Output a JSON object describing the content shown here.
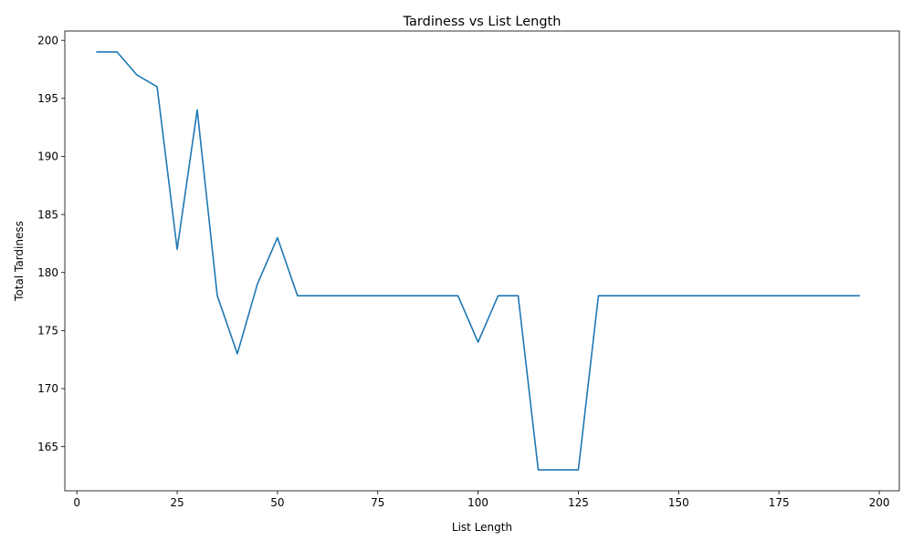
{
  "chart_data": {
    "type": "line",
    "title": "Tardiness vs List Length",
    "xlabel": "List Length",
    "ylabel": "Total Tardiness",
    "xlim": [
      -3,
      205
    ],
    "ylim": [
      161.2,
      200.8
    ],
    "xticks": [
      0,
      25,
      50,
      75,
      100,
      125,
      150,
      175,
      200
    ],
    "yticks": [
      165,
      170,
      175,
      180,
      185,
      190,
      195,
      200
    ],
    "grid": false,
    "legend": "none",
    "series": [
      {
        "color": "#1f77b4",
        "x": [
          5,
          10,
          15,
          20,
          25,
          30,
          35,
          40,
          45,
          50,
          55,
          60,
          65,
          70,
          75,
          80,
          85,
          90,
          95,
          100,
          105,
          110,
          115,
          120,
          125,
          130,
          135,
          140,
          145,
          150,
          155,
          160,
          165,
          170,
          175,
          180,
          185,
          190,
          195
        ],
        "y": [
          199,
          199,
          197,
          196,
          182,
          194,
          178,
          173,
          179,
          183,
          178,
          178,
          178,
          178,
          178,
          178,
          178,
          178,
          178,
          174,
          178,
          178,
          163,
          163,
          163,
          178,
          178,
          178,
          178,
          178,
          178,
          178,
          178,
          178,
          178,
          178,
          178,
          178,
          178
        ]
      }
    ]
  }
}
